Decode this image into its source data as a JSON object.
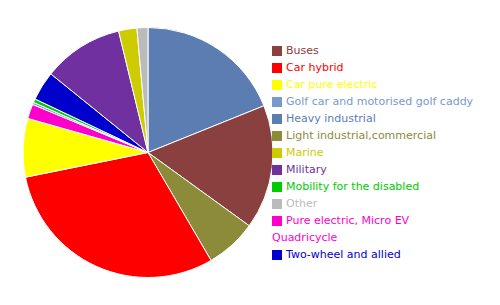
{
  "chart_data": {
    "type": "pie",
    "categories": [
      "Heavy industrial",
      "Buses",
      "Light industrial,commercial",
      "Car hybrid",
      "Car pure electric",
      "Pure electric, Micro EV Quadricycle",
      "Golf car and motorised golf caddy",
      "Mobility for the disabled",
      "Two-wheel and allied",
      "Military",
      "Marine",
      "Other"
    ],
    "values": [
      20,
      17,
      7,
      32,
      8,
      2,
      0.3,
      0.5,
      4,
      11,
      2.5,
      1.5
    ],
    "colors": [
      "#5B7DB1",
      "#8B4040",
      "#8B8B3A",
      "#FF0000",
      "#FFFF00",
      "#FF00CC",
      "#7799CC",
      "#00CC00",
      "#0000CC",
      "#7030A0",
      "#CCCC00",
      "#BBBBBB"
    ],
    "legend": "right"
  }
}
